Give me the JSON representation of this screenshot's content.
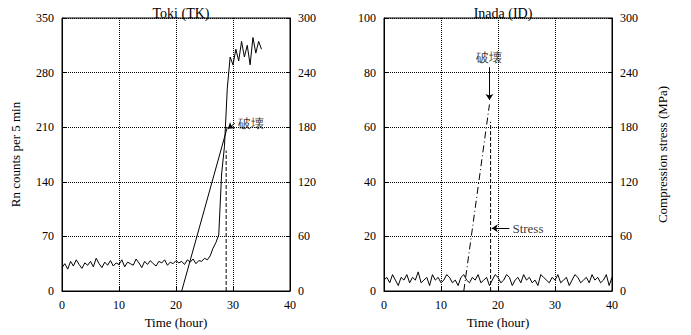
{
  "chart_data": [
    {
      "type": "line",
      "title": "Toki (TK)",
      "xlabel": "Time (hour)",
      "ylabel": "Rn counts per 5 min",
      "xlim": [
        0,
        40
      ],
      "xticks": [
        0,
        10,
        20,
        30,
        40
      ],
      "ylim": [
        0,
        350
      ],
      "yticks": [
        0,
        70,
        140,
        210,
        280,
        350
      ],
      "y2lim": [
        0,
        300
      ],
      "y2ticks": [
        0,
        60,
        120,
        180,
        240,
        300
      ],
      "grid": true,
      "series": [
        {
          "color": "#000000",
          "line_style": "solid",
          "x": [
            0,
            0.5,
            1,
            1.5,
            2,
            2.5,
            3,
            3.5,
            4,
            4.5,
            5,
            5.5,
            6,
            6.5,
            7,
            7.5,
            8,
            8.5,
            9,
            9.5,
            10,
            10.5,
            11,
            11.5,
            12,
            12.5,
            13,
            13.5,
            14,
            14.5,
            15,
            15.5,
            16,
            16.5,
            17,
            17.5,
            18,
            18.5,
            19,
            19.5,
            20,
            20.5,
            21,
            21.5,
            22,
            22.5,
            23,
            23.5,
            24,
            24.5,
            25,
            25.5,
            26,
            26.5,
            27,
            27.5,
            28,
            28.5,
            29,
            29.5,
            30,
            30.5,
            31,
            31.5,
            32,
            32.5,
            33,
            33.5,
            34,
            34.5,
            35
          ],
          "values": [
            30,
            35,
            28,
            38,
            32,
            40,
            34,
            29,
            36,
            33,
            38,
            31,
            42,
            35,
            30,
            37,
            33,
            39,
            32,
            36,
            34,
            40,
            31,
            37,
            35,
            33,
            41,
            36,
            30,
            38,
            34,
            39,
            35,
            32,
            38,
            36,
            40,
            33,
            37,
            35,
            39,
            36,
            38,
            34,
            40,
            37,
            41,
            35,
            39,
            38,
            42,
            40,
            45,
            55,
            62,
            72,
            150,
            185,
            260,
            300,
            290,
            310,
            295,
            320,
            300,
            315,
            290,
            325,
            305,
            320,
            310
          ]
        },
        {
          "color": "#000000",
          "line_style": "solid",
          "axis": "y2",
          "x": [
            21,
            29
          ],
          "values": [
            0,
            180
          ]
        },
        {
          "color": "#000000",
          "line_style": "dashed",
          "x": [
            28.8,
            28.8
          ],
          "values": [
            0,
            180
          ]
        }
      ],
      "annotations": [
        {
          "text": "破壊",
          "xytext": [
            30.3,
            215
          ],
          "xy": [
            29.1,
            208
          ],
          "side": "right"
        }
      ]
    },
    {
      "type": "line",
      "title": "Inada (ID)",
      "xlabel": "Time (hour)",
      "y2label": "Compression stress (MPa)",
      "xlim": [
        0,
        40
      ],
      "xticks": [
        0,
        10,
        20,
        30,
        40
      ],
      "ylim": [
        0,
        100
      ],
      "yticks": [
        0,
        20,
        40,
        60,
        80,
        100
      ],
      "y2lim": [
        0,
        300
      ],
      "y2ticks": [
        0,
        60,
        120,
        180,
        240,
        300
      ],
      "grid": true,
      "series": [
        {
          "color": "#000000",
          "line_style": "solid",
          "x": [
            0,
            0.5,
            1,
            1.5,
            2,
            2.5,
            3,
            3.5,
            4,
            4.5,
            5,
            5.5,
            6,
            6.5,
            7,
            7.5,
            8,
            8.5,
            9,
            9.5,
            10,
            10.5,
            11,
            11.5,
            12,
            12.5,
            13,
            13.5,
            14,
            14.5,
            15,
            15.5,
            16,
            16.5,
            17,
            17.5,
            18,
            18.5,
            19,
            19.5,
            20,
            20.5,
            21,
            21.5,
            22,
            22.5,
            23,
            23.5,
            24,
            24.5,
            25,
            25.5,
            26,
            26.5,
            27,
            27.5,
            28,
            28.5,
            29,
            29.5,
            30,
            30.5,
            31,
            31.5,
            32,
            32.5,
            33,
            33.5,
            34,
            34.5,
            35,
            35.5,
            36,
            36.5,
            37,
            37.5,
            38,
            38.5,
            39,
            39.5,
            40
          ],
          "values": [
            4,
            5,
            3,
            6,
            4,
            2,
            5,
            4,
            6,
            3,
            5,
            4,
            7,
            3,
            4,
            5,
            2,
            6,
            4,
            5,
            3,
            4,
            6,
            5,
            3,
            4,
            2,
            5,
            6,
            4,
            3,
            5,
            4,
            6,
            3,
            4,
            5,
            2,
            4,
            6,
            5,
            3,
            4,
            6,
            5,
            2,
            4,
            5,
            3,
            6,
            4,
            5,
            3,
            4,
            2,
            6,
            5,
            4,
            3,
            5,
            4,
            6,
            3,
            4,
            5,
            2,
            4,
            6,
            5,
            3,
            4,
            5,
            3,
            6,
            4,
            5,
            3,
            4,
            6,
            2,
            5
          ]
        },
        {
          "color": "#000000",
          "line_style": "dashdot",
          "axis": "y2",
          "x": [
            14,
            18.5
          ],
          "values": [
            0,
            205
          ]
        },
        {
          "color": "#000000",
          "line_style": "dashed",
          "x": [
            18.7,
            18.7
          ],
          "values": [
            0,
            62
          ]
        }
      ],
      "annotations": [
        {
          "text": "破壊",
          "xytext": [
            18.5,
            82
          ],
          "xy": [
            18.5,
            70
          ],
          "side": "top"
        },
        {
          "text": "Stress",
          "xytext": [
            22,
            23
          ],
          "xy": [
            18.9,
            23
          ],
          "side": "right"
        }
      ]
    }
  ]
}
